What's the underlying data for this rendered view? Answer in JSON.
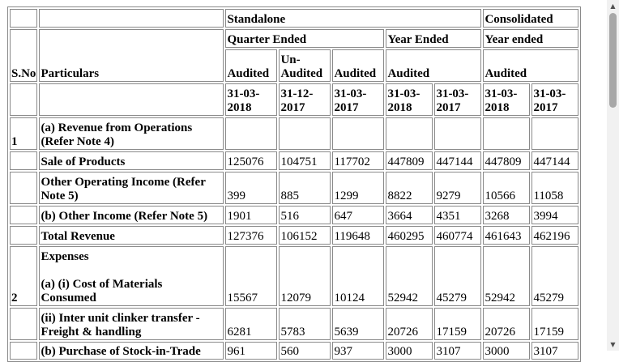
{
  "header": {
    "standalone": "Standalone",
    "consolidated": "Consolidated",
    "sno": "S.No",
    "particulars": "Particulars",
    "quarter_ended": "Quarter Ended",
    "year_ended": "Year Ended",
    "year_ended_cons": "Year ended",
    "audit": [
      "Audited",
      "Un-\nAudited",
      "Audited",
      "Audited",
      "Audited"
    ],
    "dates": [
      "31-03-\n2018",
      "31-12-\n2017",
      "31-03-\n2017",
      "31-03-\n2018",
      "31-03-\n2017",
      "31-03-\n2018",
      "31-03-\n2017"
    ]
  },
  "rows": [
    {
      "sno": "1",
      "particular": "(a) Revenue from Operations\n(Refer Note 4)",
      "values": [
        "",
        "",
        "",
        "",
        "",
        "",
        ""
      ]
    },
    {
      "sno": "",
      "particular": "Sale of Products",
      "values": [
        "125076",
        "104751",
        "117702",
        "447809",
        "447144",
        "447809",
        "447144"
      ]
    },
    {
      "sno": "",
      "particular": "Other Operating Income (Refer\nNote 5)",
      "values": [
        "399",
        "885",
        "1299",
        "8822",
        "9279",
        "10566",
        "11058"
      ]
    },
    {
      "sno": "",
      "particular": "(b) Other Income (Refer Note 5)",
      "values": [
        "1901",
        "516",
        "647",
        "3664",
        "4351",
        "3268",
        "3994"
      ]
    },
    {
      "sno": "",
      "particular": "Total Revenue",
      "values": [
        "127376",
        "106152",
        "119648",
        "460295",
        "460774",
        "461643",
        "462196"
      ]
    },
    {
      "sno": "2",
      "particular": "Expenses\n\n(a) (i) Cost of Materials\nConsumed",
      "values": [
        "15567",
        "12079",
        "10124",
        "52942",
        "45279",
        "52942",
        "45279"
      ]
    },
    {
      "sno": "",
      "particular": "(ii) Inter unit clinker transfer -\nFreight & handling",
      "values": [
        "6281",
        "5783",
        "5639",
        "20726",
        "17159",
        "20726",
        "17159"
      ]
    },
    {
      "sno": "",
      "particular": "(b) Purchase of Stock-in-Trade",
      "values": [
        "961",
        "560",
        "937",
        "3000",
        "3107",
        "3000",
        "3107"
      ]
    }
  ],
  "scrollbar": {
    "up_icon": "▲",
    "down_icon": "▼"
  }
}
